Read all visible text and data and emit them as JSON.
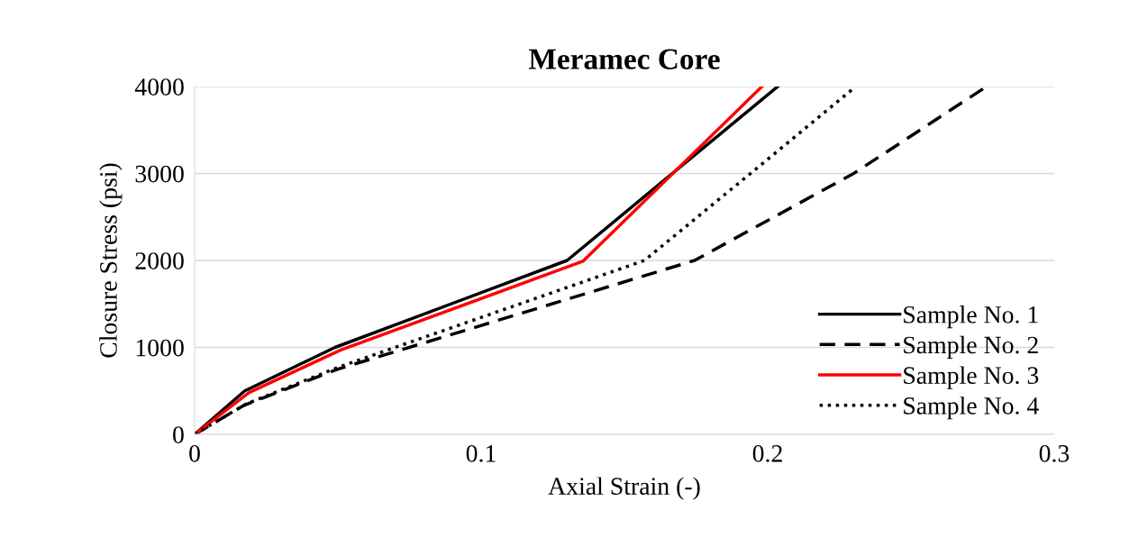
{
  "chart_data": {
    "type": "line",
    "title": "Meramec Core",
    "xlabel": "Axial Strain (-)",
    "ylabel": "Closure Stress (psi)",
    "xlim": [
      0,
      0.3
    ],
    "xticks": [
      0,
      0.1,
      0.2,
      0.3
    ],
    "ylim": [
      0,
      4000
    ],
    "yticks": [
      0,
      1000,
      2000,
      3000,
      4000
    ],
    "grid": "y",
    "legend": "bottom right",
    "series": [
      {
        "name": "Sample No. 1",
        "color": "#000000",
        "line_style": "solid",
        "x": [
          0,
          0.0175,
          0.049,
          0.13,
          0.2035
        ],
        "values": [
          0,
          500,
          1000,
          2000,
          4000
        ]
      },
      {
        "name": "Sample No. 2",
        "color": "#000000",
        "line_style": "dashed",
        "x": [
          0,
          0.017,
          0.05,
          0.1745,
          0.23,
          0.2764
        ],
        "values": [
          0,
          330,
          750,
          2000,
          3000,
          4000
        ]
      },
      {
        "name": "Sample No. 3",
        "color": "#ff0000",
        "line_style": "solid",
        "x": [
          0,
          0.019,
          0.051,
          0.1355,
          0.198
        ],
        "values": [
          0,
          480,
          970,
          1990,
          4000
        ]
      },
      {
        "name": "Sample No. 4",
        "color": "#000000",
        "line_style": "dotted",
        "x": [
          0,
          0.018,
          0.05,
          0.157,
          0.194,
          0.23
        ],
        "values": [
          0,
          350,
          770,
          2000,
          3000,
          3980
        ]
      }
    ]
  }
}
